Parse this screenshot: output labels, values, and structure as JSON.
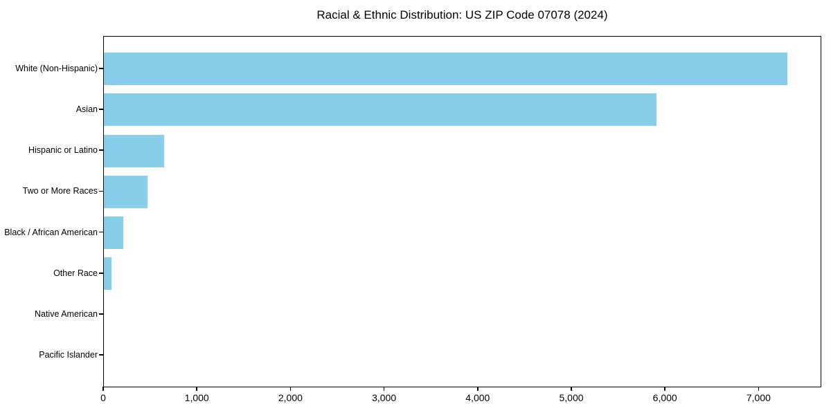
{
  "chart_data": {
    "type": "bar",
    "orientation": "horizontal",
    "title": "Racial & Ethnic Distribution: US ZIP Code 07078 (2024)",
    "categories": [
      "White (Non-Hispanic)",
      "Asian",
      "Hispanic or Latino",
      "Two or More Races",
      "Black / African American",
      "Other Race",
      "Native American",
      "Pacific Islander"
    ],
    "values": [
      7300,
      5900,
      645,
      465,
      205,
      85,
      0,
      0
    ],
    "xlabel": "",
    "ylabel": "",
    "xlim": [
      0,
      7670
    ],
    "x_ticks": [
      0,
      1000,
      2000,
      3000,
      4000,
      5000,
      6000,
      7000
    ],
    "x_tick_labels": [
      "0",
      "1,000",
      "2,000",
      "3,000",
      "4,000",
      "5,000",
      "6,000",
      "7,000"
    ],
    "bar_color": "#87CEEB",
    "axis_color": "#000000",
    "text_color": "#000000",
    "grid": false,
    "legend": false
  }
}
